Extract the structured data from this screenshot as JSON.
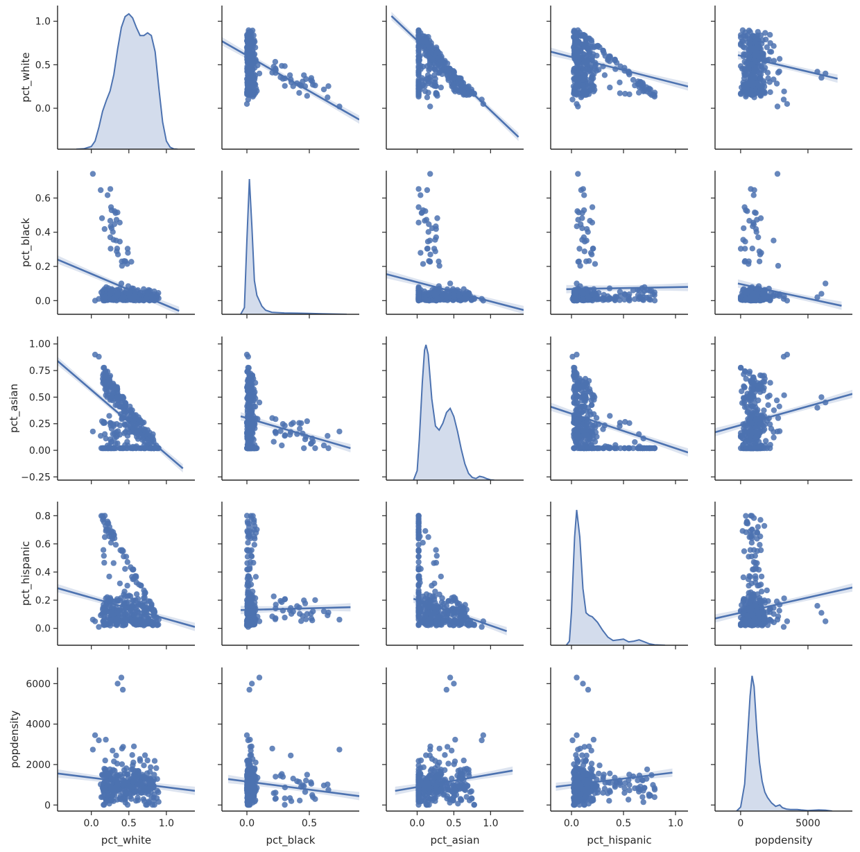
{
  "chart_data": {
    "type": "scatter",
    "variables": [
      "pct_white",
      "pct_black",
      "pct_asian",
      "pct_hispanic",
      "popdensity"
    ],
    "axis_labels": [
      "pct_white",
      "pct_black",
      "pct_asian",
      "pct_hispanic",
      "popdensity"
    ],
    "color": "#4c72b0",
    "fill_color": "#d3dcec",
    "ci_color": "#dde4f0",
    "diagonal": "kde",
    "off_diagonal": "regression scatter",
    "grid": false,
    "limits": {
      "pct_white": [
        -0.45,
        1.38
      ],
      "pct_black": [
        -0.2,
        0.9
      ],
      "pct_asian": [
        -0.42,
        1.45
      ],
      "pct_hispanic": [
        -0.2,
        1.12
      ],
      "popdensity": [
        -1900,
        8300
      ]
    },
    "row_limits": {
      "pct_white": [
        -0.47,
        1.18
      ],
      "pct_black": [
        -0.08,
        0.76
      ],
      "pct_asian": [
        -0.28,
        1.07
      ],
      "pct_hispanic": [
        -0.12,
        0.9
      ],
      "popdensity": [
        -300,
        6800
      ]
    },
    "ticks": {
      "pct_white": [
        0.0,
        0.5,
        1.0
      ],
      "pct_black": [
        0.0,
        0.5
      ],
      "pct_asian": [
        0.0,
        0.5,
        1.0
      ],
      "pct_hispanic": [
        0.0,
        0.5,
        1.0
      ],
      "popdensity": [
        0,
        5000
      ]
    },
    "tick_labels": {
      "pct_white": [
        "0.0",
        "0.5",
        "1.0"
      ],
      "pct_black": [
        "0.0",
        "0.5"
      ],
      "pct_asian": [
        "0.0",
        "0.5",
        "1.0"
      ],
      "pct_hispanic": [
        "0.0",
        "0.5",
        "1.0"
      ],
      "popdensity": [
        "0",
        "5000"
      ]
    },
    "row_ticks": {
      "pct_white": [
        0.0,
        0.5,
        1.0
      ],
      "pct_black": [
        0.0,
        0.2,
        0.4,
        0.6
      ],
      "pct_asian": [
        -0.25,
        0.0,
        0.25,
        0.5,
        0.75,
        1.0
      ],
      "pct_hispanic": [
        0.0,
        0.2,
        0.4,
        0.6,
        0.8
      ],
      "popdensity": [
        0,
        2000,
        4000,
        6000
      ]
    },
    "row_tick_labels": {
      "pct_white": [
        "0.0",
        "0.5",
        "1.0"
      ],
      "pct_black": [
        "0.0",
        "0.2",
        "0.4",
        "0.6"
      ],
      "pct_asian": [
        "−0.25",
        "0.00",
        "0.25",
        "0.50",
        "0.75",
        "1.00"
      ],
      "pct_hispanic": [
        "0.0",
        "0.2",
        "0.4",
        "0.6",
        "0.8"
      ],
      "popdensity": [
        "0",
        "2000",
        "4000",
        "6000"
      ]
    },
    "regression_lines": {
      "pct_black|pct_white": [
        [
          -0.45,
          0.24
        ],
        [
          1.17,
          -0.06
        ]
      ],
      "pct_asian|pct_white": [
        [
          -0.45,
          0.84
        ],
        [
          1.22,
          -0.17
        ]
      ],
      "pct_hispanic|pct_white": [
        [
          -0.45,
          0.285
        ],
        [
          1.38,
          0.01
        ]
      ],
      "popdensity|pct_white": [
        [
          -0.45,
          1560
        ],
        [
          1.38,
          700
        ]
      ],
      "pct_white|pct_black": [
        [
          -0.2,
          0.77
        ],
        [
          0.9,
          -0.13
        ]
      ],
      "pct_asian|pct_black": [
        [
          -0.05,
          0.32
        ],
        [
          0.83,
          0.02
        ]
      ],
      "pct_hispanic|pct_black": [
        [
          -0.05,
          0.13
        ],
        [
          0.83,
          0.15
        ]
      ],
      "popdensity|pct_black": [
        [
          -0.15,
          1280
        ],
        [
          0.9,
          440
        ]
      ],
      "pct_white|pct_asian": [
        [
          -0.35,
          1.06
        ],
        [
          1.38,
          -0.33
        ]
      ],
      "pct_black|pct_asian": [
        [
          -0.42,
          0.155
        ],
        [
          1.45,
          -0.055
        ]
      ],
      "pct_hispanic|pct_asian": [
        [
          -0.05,
          0.21
        ],
        [
          1.22,
          -0.02
        ]
      ],
      "popdensity|pct_asian": [
        [
          -0.3,
          700
        ],
        [
          1.3,
          1700
        ]
      ],
      "pct_white|pct_hispanic": [
        [
          -0.2,
          0.65
        ],
        [
          1.12,
          0.25
        ]
      ],
      "pct_black|pct_hispanic": [
        [
          -0.05,
          0.067
        ],
        [
          1.12,
          0.08
        ]
      ],
      "pct_asian|pct_hispanic": [
        [
          -0.2,
          0.41
        ],
        [
          1.12,
          -0.02
        ]
      ],
      "popdensity|pct_hispanic": [
        [
          -0.15,
          900
        ],
        [
          0.97,
          1600
        ]
      ],
      "pct_white|popdensity": [
        [
          -200,
          0.61
        ],
        [
          7200,
          0.34
        ]
      ],
      "pct_black|popdensity": [
        [
          -200,
          0.1
        ],
        [
          7500,
          -0.03
        ]
      ],
      "pct_asian|popdensity": [
        [
          -1900,
          0.17
        ],
        [
          8300,
          0.53
        ]
      ],
      "pct_hispanic|popdensity": [
        [
          -1900,
          0.07
        ],
        [
          8300,
          0.29
        ]
      ]
    },
    "kde": {
      "pct_white": [
        [
          -0.2,
          0
        ],
        [
          -0.1,
          0.003
        ],
        [
          0.0,
          0.02
        ],
        [
          0.05,
          0.06
        ],
        [
          0.1,
          0.16
        ],
        [
          0.15,
          0.28
        ],
        [
          0.2,
          0.36
        ],
        [
          0.25,
          0.43
        ],
        [
          0.3,
          0.55
        ],
        [
          0.35,
          0.74
        ],
        [
          0.4,
          0.9
        ],
        [
          0.45,
          0.98
        ],
        [
          0.5,
          1.0
        ],
        [
          0.55,
          0.97
        ],
        [
          0.6,
          0.9
        ],
        [
          0.65,
          0.84
        ],
        [
          0.7,
          0.84
        ],
        [
          0.75,
          0.86
        ],
        [
          0.8,
          0.84
        ],
        [
          0.85,
          0.72
        ],
        [
          0.9,
          0.45
        ],
        [
          0.95,
          0.2
        ],
        [
          1.0,
          0.06
        ],
        [
          1.05,
          0.015
        ],
        [
          1.1,
          0.002
        ],
        [
          1.15,
          0
        ]
      ],
      "pct_black": [
        [
          -0.05,
          0
        ],
        [
          -0.02,
          0.05
        ],
        [
          0.0,
          0.55
        ],
        [
          0.02,
          1.0
        ],
        [
          0.04,
          0.65
        ],
        [
          0.06,
          0.25
        ],
        [
          0.08,
          0.14
        ],
        [
          0.1,
          0.1
        ],
        [
          0.12,
          0.06
        ],
        [
          0.15,
          0.03
        ],
        [
          0.2,
          0.015
        ],
        [
          0.3,
          0.01
        ],
        [
          0.4,
          0.008
        ],
        [
          0.5,
          0.006
        ],
        [
          0.6,
          0.004
        ],
        [
          0.7,
          0.002
        ],
        [
          0.8,
          0
        ]
      ],
      "pct_asian": [
        [
          -0.05,
          0
        ],
        [
          0.0,
          0.07
        ],
        [
          0.03,
          0.3
        ],
        [
          0.07,
          0.72
        ],
        [
          0.1,
          0.96
        ],
        [
          0.12,
          1.0
        ],
        [
          0.15,
          0.93
        ],
        [
          0.2,
          0.6
        ],
        [
          0.25,
          0.4
        ],
        [
          0.3,
          0.37
        ],
        [
          0.35,
          0.42
        ],
        [
          0.4,
          0.5
        ],
        [
          0.45,
          0.53
        ],
        [
          0.5,
          0.47
        ],
        [
          0.55,
          0.36
        ],
        [
          0.6,
          0.23
        ],
        [
          0.65,
          0.12
        ],
        [
          0.7,
          0.05
        ],
        [
          0.75,
          0.02
        ],
        [
          0.8,
          0.012
        ],
        [
          0.85,
          0.028
        ],
        [
          0.9,
          0.022
        ],
        [
          0.95,
          0.01
        ],
        [
          1.0,
          0.002
        ],
        [
          1.05,
          0
        ]
      ],
      "pct_hispanic": [
        [
          -0.05,
          0
        ],
        [
          -0.02,
          0.03
        ],
        [
          0.0,
          0.25
        ],
        [
          0.03,
          0.8
        ],
        [
          0.05,
          1.0
        ],
        [
          0.08,
          0.8
        ],
        [
          0.11,
          0.42
        ],
        [
          0.14,
          0.24
        ],
        [
          0.17,
          0.22
        ],
        [
          0.2,
          0.21
        ],
        [
          0.25,
          0.17
        ],
        [
          0.3,
          0.11
        ],
        [
          0.35,
          0.06
        ],
        [
          0.4,
          0.035
        ],
        [
          0.45,
          0.04
        ],
        [
          0.5,
          0.045
        ],
        [
          0.55,
          0.025
        ],
        [
          0.6,
          0.03
        ],
        [
          0.65,
          0.04
        ],
        [
          0.7,
          0.025
        ],
        [
          0.75,
          0.01
        ],
        [
          0.8,
          0.003
        ],
        [
          0.9,
          0
        ]
      ],
      "popdensity": [
        [
          -300,
          0
        ],
        [
          0,
          0.03
        ],
        [
          300,
          0.2
        ],
        [
          500,
          0.52
        ],
        [
          700,
          0.85
        ],
        [
          850,
          1.0
        ],
        [
          1000,
          0.92
        ],
        [
          1200,
          0.6
        ],
        [
          1400,
          0.36
        ],
        [
          1600,
          0.22
        ],
        [
          1800,
          0.14
        ],
        [
          2000,
          0.1
        ],
        [
          2300,
          0.06
        ],
        [
          2600,
          0.035
        ],
        [
          2900,
          0.045
        ],
        [
          3100,
          0.025
        ],
        [
          3400,
          0.015
        ],
        [
          3700,
          0.012
        ],
        [
          4200,
          0.012
        ],
        [
          4500,
          0.008
        ],
        [
          5000,
          0.004
        ],
        [
          5800,
          0.008
        ],
        [
          6300,
          0.006
        ],
        [
          6800,
          0
        ]
      ]
    }
  }
}
